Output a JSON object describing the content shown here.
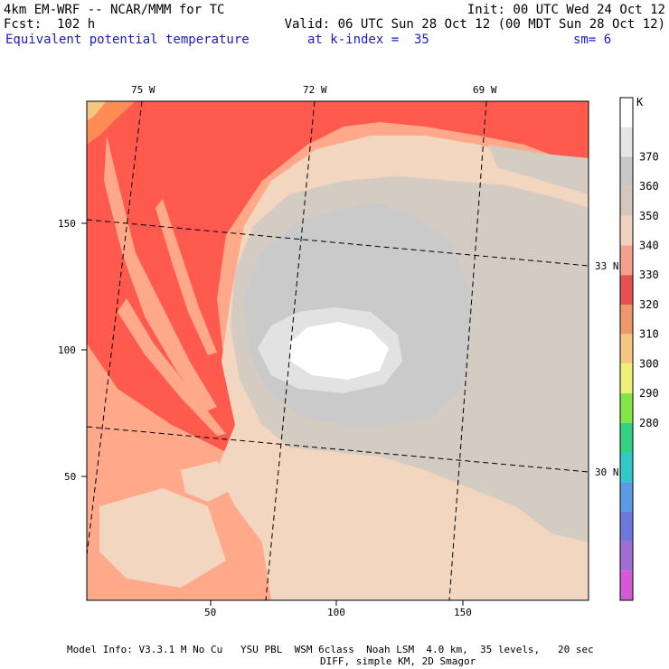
{
  "header": {
    "model": "4km EM-WRF -- NCAR/MMM for TC",
    "forecast": "Fcst:  102 h",
    "init": "Init: 00 UTC Wed 24 Oct 12",
    "valid": "Valid: 06 UTC Sun 28 Oct 12 (00 MDT Sun 28 Oct 12)",
    "field": "Equivalent potential temperature",
    "level": "at k-index =  35",
    "smoothing": "sm= 6"
  },
  "map": {
    "top_labels": [
      "75 W",
      "72 W",
      "69 W"
    ],
    "right_labels": [
      "33 N",
      "30 N"
    ],
    "left_ticks": [
      "150",
      "100",
      "50"
    ],
    "bottom_ticks": [
      "50",
      "100",
      "150"
    ]
  },
  "colorbar": {
    "unit": "K",
    "levels": [
      "280",
      "290",
      "300",
      "310",
      "320",
      "330",
      "340",
      "350",
      "360",
      "370"
    ],
    "colors": [
      "#d55ad5",
      "#a06ed2",
      "#6e78dc",
      "#5a9ae6",
      "#32c8c8",
      "#32d282",
      "#82e646",
      "#f0f078",
      "#f5c882",
      "#f0966e",
      "#e65050",
      "#f5a08c",
      "#f0d2be",
      "#d2c8be",
      "#c8c8c8",
      "#e6e6e6",
      "#ffffff"
    ]
  },
  "palette": {
    "red": "#ff5a4d",
    "salmon": "#ffa88a",
    "tan": "#f2d6bf",
    "grey": "#d4cbc2",
    "lightgrey": "#cacaca",
    "pale": "#e2e2e2",
    "white": "#ffffff",
    "orange": "#ff8c55"
  },
  "footer": {
    "line1": "Model Info: V3.3.1 M No Cu   YSU PBL  WSM 6class  Noah LSM  4.0 km,  35 levels,   20 sec",
    "line2": "DIFF, simple KM, 2D Smagor"
  }
}
